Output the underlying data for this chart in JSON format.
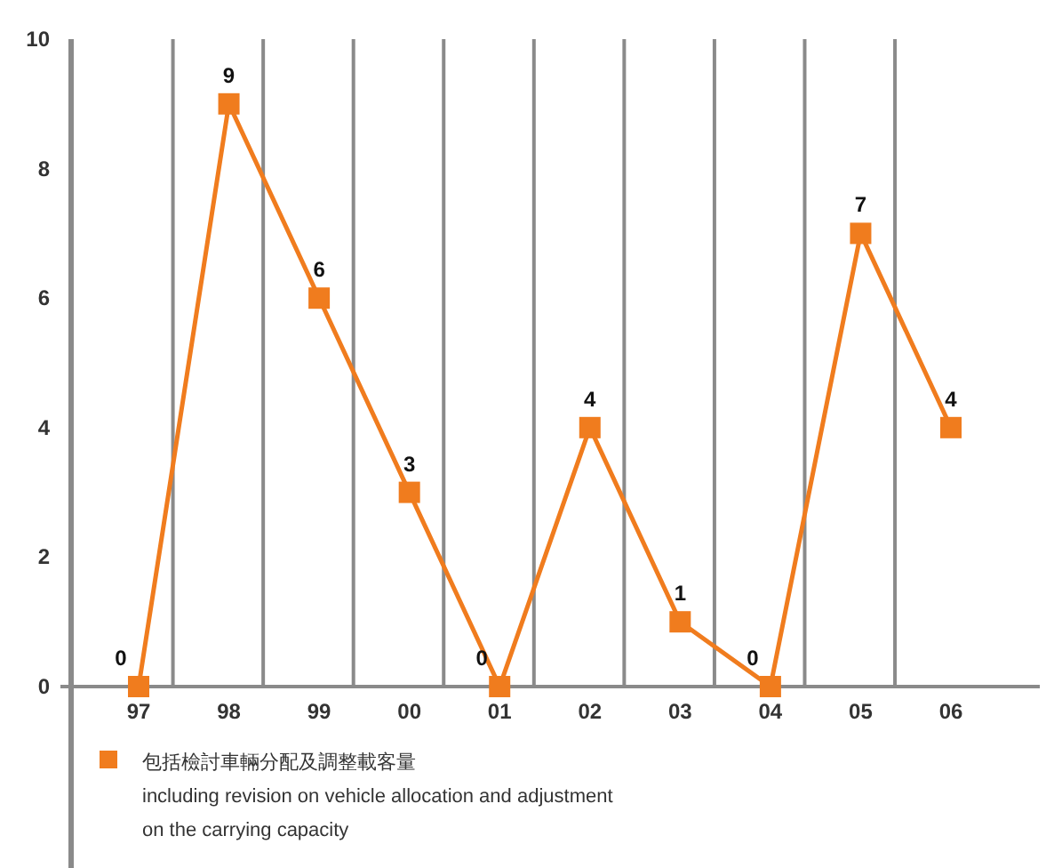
{
  "chart_data": {
    "type": "line",
    "categories": [
      "97",
      "98",
      "99",
      "00",
      "01",
      "02",
      "03",
      "04",
      "05",
      "06"
    ],
    "series": [
      {
        "name": "包括檢討車輛分配及調整載客量",
        "color": "#f07c1e",
        "values": [
          0,
          9,
          6,
          3,
          0,
          4,
          1,
          0,
          7,
          4
        ]
      }
    ],
    "annotations": [
      "including revision on vehicle allocation and adjustment",
      "on the carrying capacity"
    ],
    "ylim": [
      0,
      10
    ],
    "yticks": [
      0,
      2,
      4,
      6,
      8,
      10
    ],
    "grid": "x",
    "marker": "square",
    "line_style": "solid",
    "data_labels": true,
    "legend": "bottom left"
  }
}
